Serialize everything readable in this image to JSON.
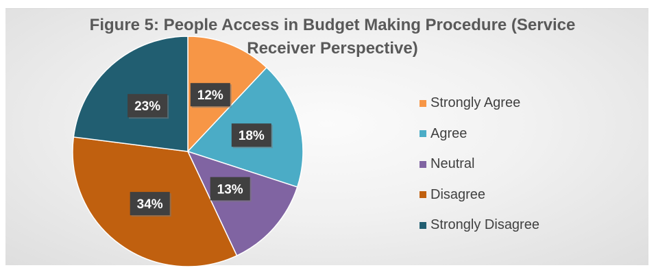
{
  "chart_data": {
    "type": "pie",
    "title": "Figure 5: People Access in Budget Making Procedure (Service Receiver Perspective)",
    "categories": [
      "Strongly Agree",
      "Agree",
      "Neutral",
      "Disagree",
      "Strongly Disagree"
    ],
    "values": [
      12,
      18,
      13,
      34,
      23
    ],
    "value_labels": [
      "12%",
      "18%",
      "13%",
      "34%",
      "23%"
    ],
    "colors": [
      "#F79646",
      "#4BACC6",
      "#8064A2",
      "#C0600F",
      "#215E71"
    ],
    "legend_position": "right",
    "start_angle": "12 o'clock, clockwise"
  }
}
